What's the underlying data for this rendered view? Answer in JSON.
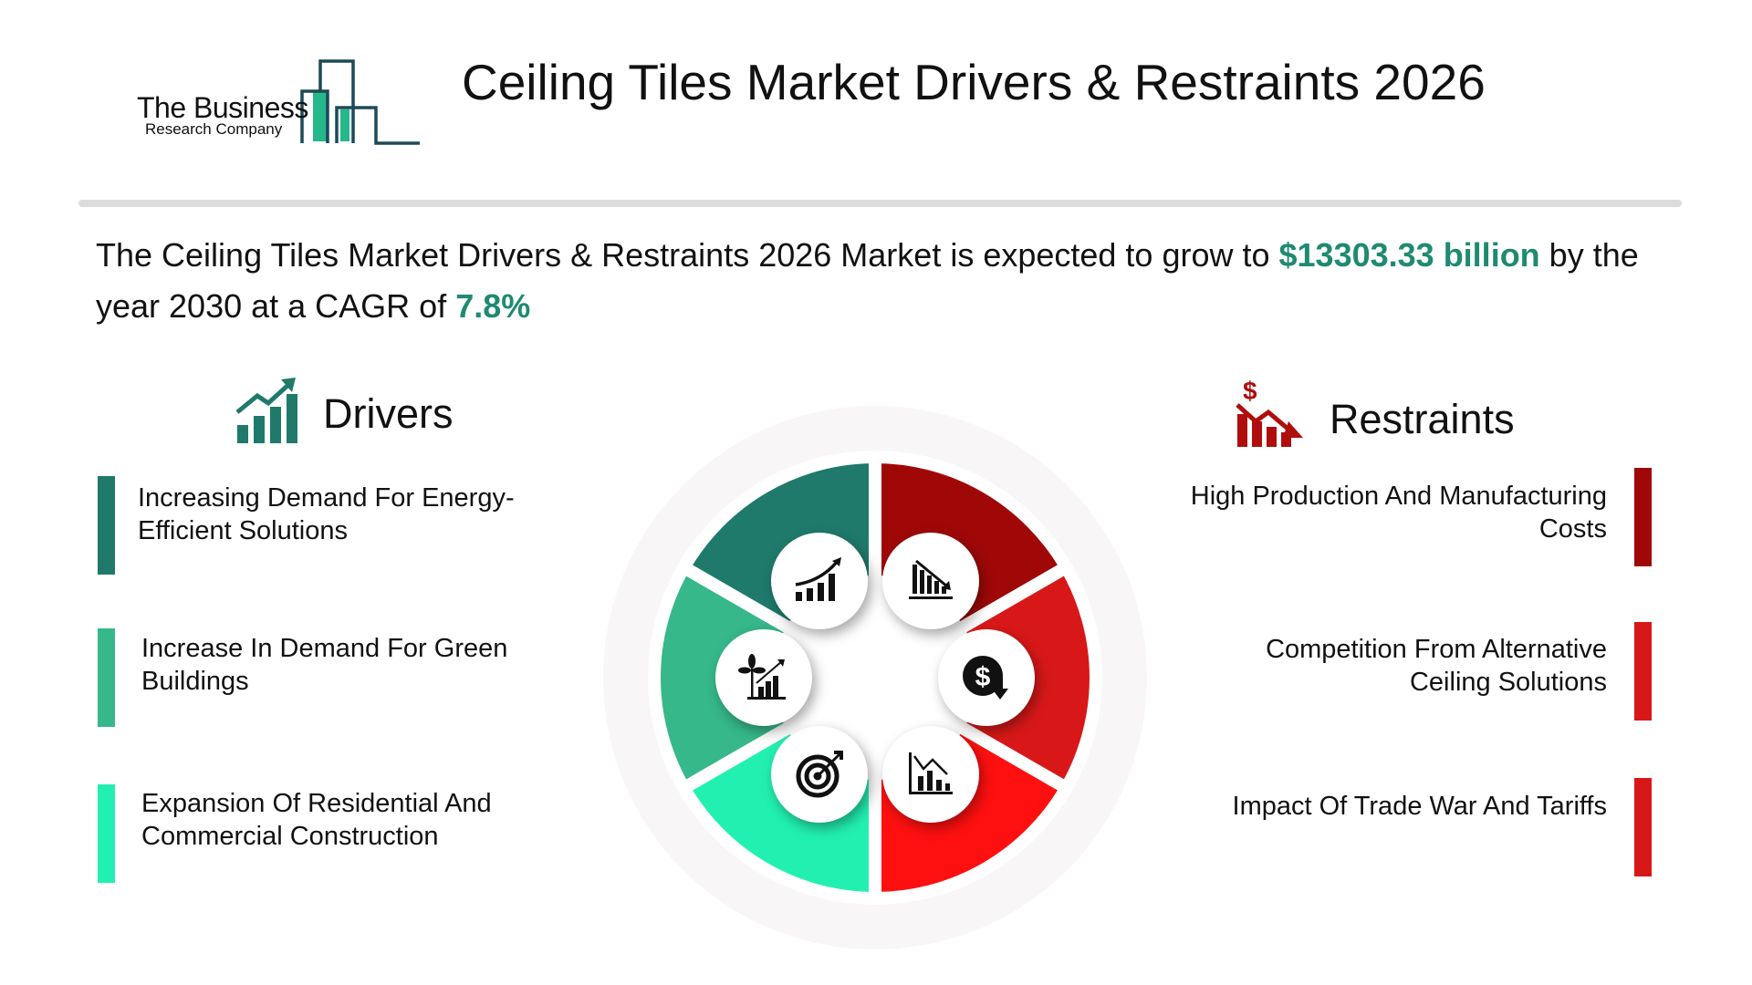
{
  "logo": {
    "line1": "The Business",
    "line2": "Research Company"
  },
  "header": {
    "title": "Ceiling Tiles Market Drivers & Restraints 2026"
  },
  "summary": {
    "prefix": "The Ceiling Tiles Market Drivers & Restraints 2026 Market is expected to grow to ",
    "value": "$13303.33 billion",
    "middle": " by the year 2030 at a CAGR of ",
    "cagr": "7.8%"
  },
  "drivers": {
    "title": "Drivers",
    "items": [
      {
        "label": "Increasing Demand For Energy-Efficient Solutions",
        "color": "#1f7a6b"
      },
      {
        "label": "Increase In Demand For Green Buildings",
        "color": "#36b88a"
      },
      {
        "label": "Expansion Of Residential And Commercial Construction",
        "color": "#22f0b0"
      }
    ]
  },
  "restraints": {
    "title": "Restraints",
    "items": [
      {
        "label": "High Production And Manufacturing Costs",
        "color": "#a00808"
      },
      {
        "label": "Competition From Alternative Ceiling Solutions",
        "color": "#d81818"
      },
      {
        "label": "Impact Of Trade War And Tariffs",
        "color": "#d81818"
      }
    ]
  },
  "wheel": {
    "segments": [
      {
        "icon": "bar-chart-decline-icon",
        "color": "#a00808"
      },
      {
        "icon": "dollar-down-icon",
        "color": "#d81818"
      },
      {
        "icon": "chart-decrease-icon",
        "color": "#ff1010"
      },
      {
        "icon": "target-icon",
        "color": "#22f0b0"
      },
      {
        "icon": "plant-growth-chart-icon",
        "color": "#36b88a"
      },
      {
        "icon": "growth-chart-icon",
        "color": "#1f7a6b"
      }
    ]
  },
  "colors": {
    "accent": "#1f8a72",
    "drivers_icon": "#1f7a6b",
    "restraints_icon": "#b00d0d"
  }
}
